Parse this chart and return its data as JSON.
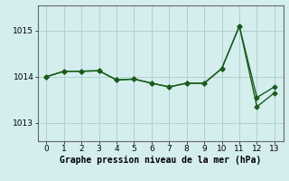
{
  "line1_x": [
    0,
    1,
    2,
    3,
    4,
    5,
    6,
    7,
    8,
    9,
    10,
    11,
    12,
    13
  ],
  "line1_y": [
    1014.0,
    1014.12,
    1014.12,
    1014.13,
    1013.93,
    1013.95,
    1013.86,
    1013.78,
    1013.86,
    1013.86,
    1014.18,
    1015.1,
    1013.55,
    1013.78
  ],
  "line2_x": [
    0,
    1,
    2,
    3,
    4,
    5,
    6,
    7,
    8,
    9,
    10,
    11,
    12,
    13
  ],
  "line2_y": [
    1014.0,
    1014.12,
    1014.12,
    1014.13,
    1013.93,
    1013.95,
    1013.86,
    1013.78,
    1013.86,
    1013.86,
    1014.18,
    1015.1,
    1013.35,
    1013.65
  ],
  "line_color": "#1a5c1a",
  "marker": "D",
  "marker_size": 2.5,
  "line_width": 1.0,
  "bg_color": "#d4eeee",
  "grid_color": "#b0d0d0",
  "xlabel": "Graphe pression niveau de la mer (hPa)",
  "xlabel_fontsize": 7,
  "xlim": [
    -0.5,
    13.5
  ],
  "ylim": [
    1012.6,
    1015.55
  ],
  "yticks": [
    1013,
    1014,
    1015
  ],
  "xticks": [
    0,
    1,
    2,
    3,
    4,
    5,
    6,
    7,
    8,
    9,
    10,
    11,
    12,
    13
  ],
  "tick_fontsize": 6.5
}
